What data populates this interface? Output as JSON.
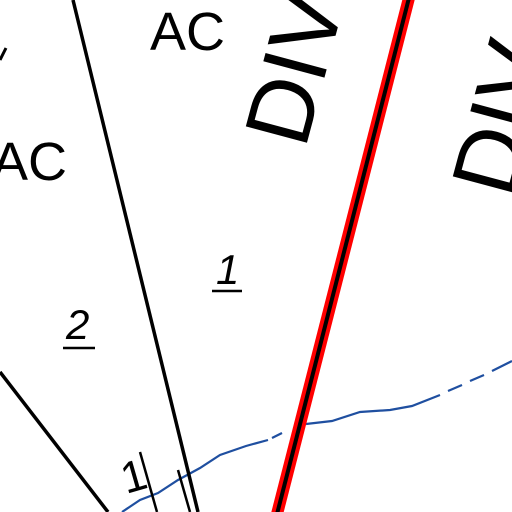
{
  "map": {
    "labels": {
      "ac_top": "AC",
      "ac_left": "AC",
      "div_center": "DIV",
      "div_right": "DIV",
      "lot_1": "1",
      "lot_2": "2",
      "lot_1_bottom": "1"
    },
    "colors": {
      "background": "#ffffff",
      "line": "#000000",
      "highlight": "#ff0000",
      "water": "#1f4fa0"
    }
  }
}
